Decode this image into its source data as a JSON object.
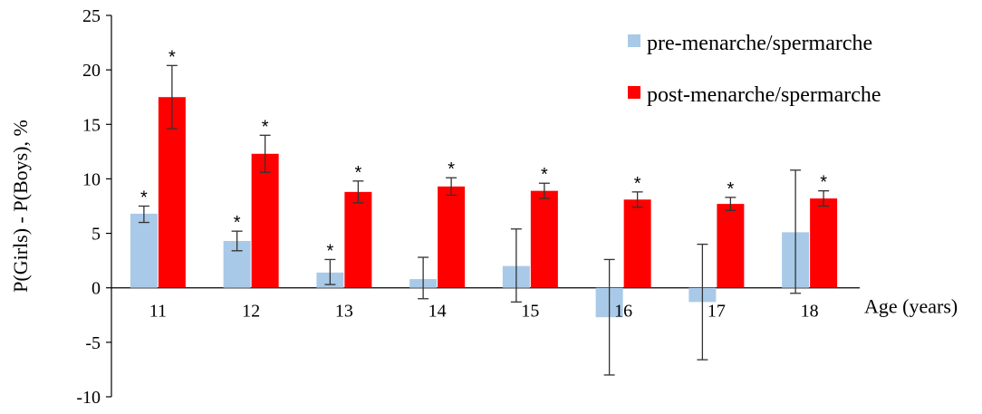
{
  "chart_data": {
    "type": "bar",
    "categories": [
      "11",
      "12",
      "13",
      "14",
      "15",
      "16",
      "17",
      "18"
    ],
    "xlabel": "Age (years)",
    "ylabel": "P(Girls) - P(Boys), %",
    "ylim": [
      -10,
      25
    ],
    "yticks": [
      "-10",
      "-5",
      "0",
      "5",
      "10",
      "15",
      "20",
      "25"
    ],
    "grid": false,
    "legend_position": "top-right",
    "series": [
      {
        "name": "pre-menarche/spermarche",
        "color": "#a9c9e8",
        "values": [
          6.8,
          4.3,
          1.4,
          0.8,
          2.0,
          -2.7,
          -1.3,
          5.1
        ],
        "err_low": [
          6.0,
          3.4,
          0.3,
          -1.0,
          -1.3,
          -8.0,
          -6.6,
          -0.5
        ],
        "err_high": [
          7.5,
          5.2,
          2.6,
          2.8,
          5.4,
          2.6,
          4.0,
          10.8
        ],
        "significant": [
          true,
          true,
          true,
          false,
          false,
          false,
          false,
          false
        ]
      },
      {
        "name": "post-menarche/spermarche",
        "color": "#ff0000",
        "values": [
          17.5,
          12.3,
          8.8,
          9.3,
          8.9,
          8.1,
          7.7,
          8.2
        ],
        "err_low": [
          14.6,
          10.6,
          7.8,
          8.5,
          8.2,
          7.4,
          7.1,
          7.5
        ],
        "err_high": [
          20.4,
          14.0,
          9.8,
          10.1,
          9.6,
          8.8,
          8.3,
          8.9
        ],
        "significant": [
          true,
          true,
          true,
          true,
          true,
          true,
          true,
          true
        ]
      }
    ],
    "significance_marker": "*"
  }
}
